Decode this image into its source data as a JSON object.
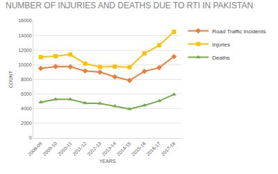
{
  "chart_data": {
    "type": "line",
    "title": "NUMBER OF INJURIES AND DEATHS DUE TO RTI IN PAKISTAN",
    "x_label": "YEARS",
    "y_label": "COUNT",
    "categories": [
      "2008-09",
      "2009-10",
      "2010-11",
      "2011-12",
      "2012-13",
      "2013-14",
      "2014-15",
      "2015-16",
      "2016-17",
      "2017-18"
    ],
    "series": [
      {
        "name": "Road Traffic Incidents",
        "color": "#ED7D31",
        "marker": "diamond",
        "values": [
          9500,
          9750,
          9720,
          9150,
          8990,
          8350,
          7860,
          9100,
          9600,
          11120
        ]
      },
      {
        "name": "Injuries",
        "color": "#FFC000",
        "marker": "square",
        "values": [
          11050,
          11170,
          11400,
          10150,
          9700,
          9750,
          9650,
          11550,
          12650,
          14500
        ]
      },
      {
        "name": "Deaths",
        "color": "#70AD47",
        "marker": "triangle-up",
        "values": [
          4880,
          5280,
          5270,
          4760,
          4720,
          4350,
          3950,
          4450,
          5050,
          5950
        ]
      }
    ],
    "ylim": [
      0,
      16000
    ],
    "yticks": [
      0,
      2000,
      4000,
      6000,
      8000,
      10000,
      12000,
      14000,
      16000
    ],
    "grid": true,
    "legend": "right"
  }
}
